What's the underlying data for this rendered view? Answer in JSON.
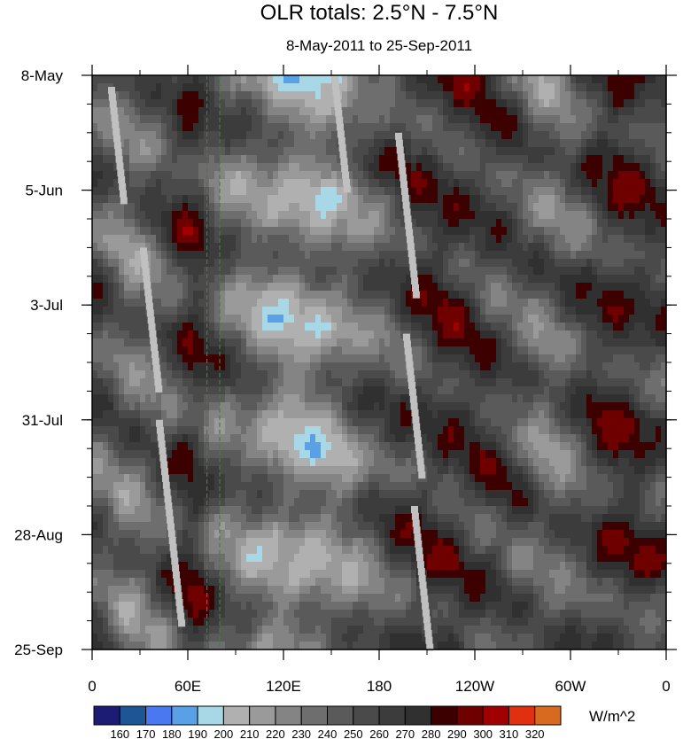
{
  "chart_data": {
    "type": "heatmap",
    "title": "OLR totals: 2.5°N - 7.5°N",
    "subtitle": "8-May-2011 to 25-Sep-2011",
    "xlabel": "",
    "ylabel": "",
    "x_ticks": [
      "0",
      "60E",
      "120E",
      "180",
      "120W",
      "60W",
      "0"
    ],
    "x_tick_values": [
      0,
      60,
      120,
      180,
      240,
      300,
      360
    ],
    "y_ticks": [
      "8-May",
      "5-Jun",
      "3-Jul",
      "31-Jul",
      "28-Aug",
      "25-Sep"
    ],
    "y_tick_values": [
      "2011-05-08",
      "2011-06-05",
      "2011-07-03",
      "2011-07-31",
      "2011-08-28",
      "2011-09-25"
    ],
    "xlim": [
      0,
      360
    ],
    "ylim": [
      "2011-05-08",
      "2011-09-25"
    ],
    "y_reversed": true,
    "dashed_lines_lon": [
      72,
      80
    ],
    "dashed_line_color": "#2e8b2e",
    "missing_color": "#c0c0c0",
    "colorbar": {
      "units": "W/m^2",
      "levels": [
        "160",
        "170",
        "180",
        "190",
        "200",
        "210",
        "220",
        "230",
        "240",
        "250",
        "260",
        "270",
        "280",
        "290",
        "300",
        "310",
        "320"
      ],
      "colors": [
        "#1c1c74",
        "#1d5595",
        "#4a78f0",
        "#5aa0e6",
        "#a8d8e6",
        "#b0b0b0",
        "#9a9a9a",
        "#848484",
        "#6e6e6e",
        "#5a5a5a",
        "#4a4a4a",
        "#3c3c3c",
        "#303030",
        "#3c0000",
        "#6e0000",
        "#a00000",
        "#e03010",
        "#d86a20"
      ]
    }
  }
}
